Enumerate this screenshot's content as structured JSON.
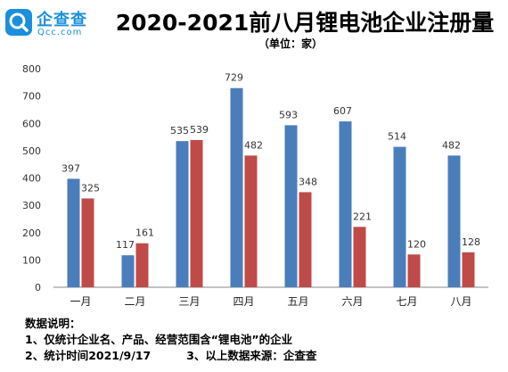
{
  "brand": {
    "name": "企查查",
    "domain": "Qcc.com",
    "icon": "qcc-logo-icon",
    "color": "#1a8fdc"
  },
  "chart_data": {
    "type": "bar",
    "title": "2020-2021前八月锂电池企业注册量",
    "subtitle": "（单位：家）",
    "categories": [
      "一月",
      "二月",
      "三月",
      "四月",
      "五月",
      "六月",
      "七月",
      "八月"
    ],
    "series": [
      {
        "values": [
          397,
          117,
          535,
          729,
          593,
          607,
          514,
          482
        ],
        "color": "#4a7ebb"
      },
      {
        "values": [
          325,
          161,
          539,
          482,
          348,
          221,
          120,
          128
        ],
        "color": "#be4b48"
      }
    ],
    "ylim": [
      0,
      800
    ],
    "yticks": [
      0,
      100,
      200,
      300,
      400,
      500,
      600,
      700,
      800
    ],
    "xlabel": "",
    "ylabel": "",
    "grid": false,
    "legend": "none"
  },
  "notes": {
    "heading": "数据说明：",
    "line1": "1、仅统计企业名、产品、经营范围含“锂电池”的企业",
    "line2a": "2、统计时间2021/9/17",
    "line2b": "3、以上数据来源：企查查"
  }
}
